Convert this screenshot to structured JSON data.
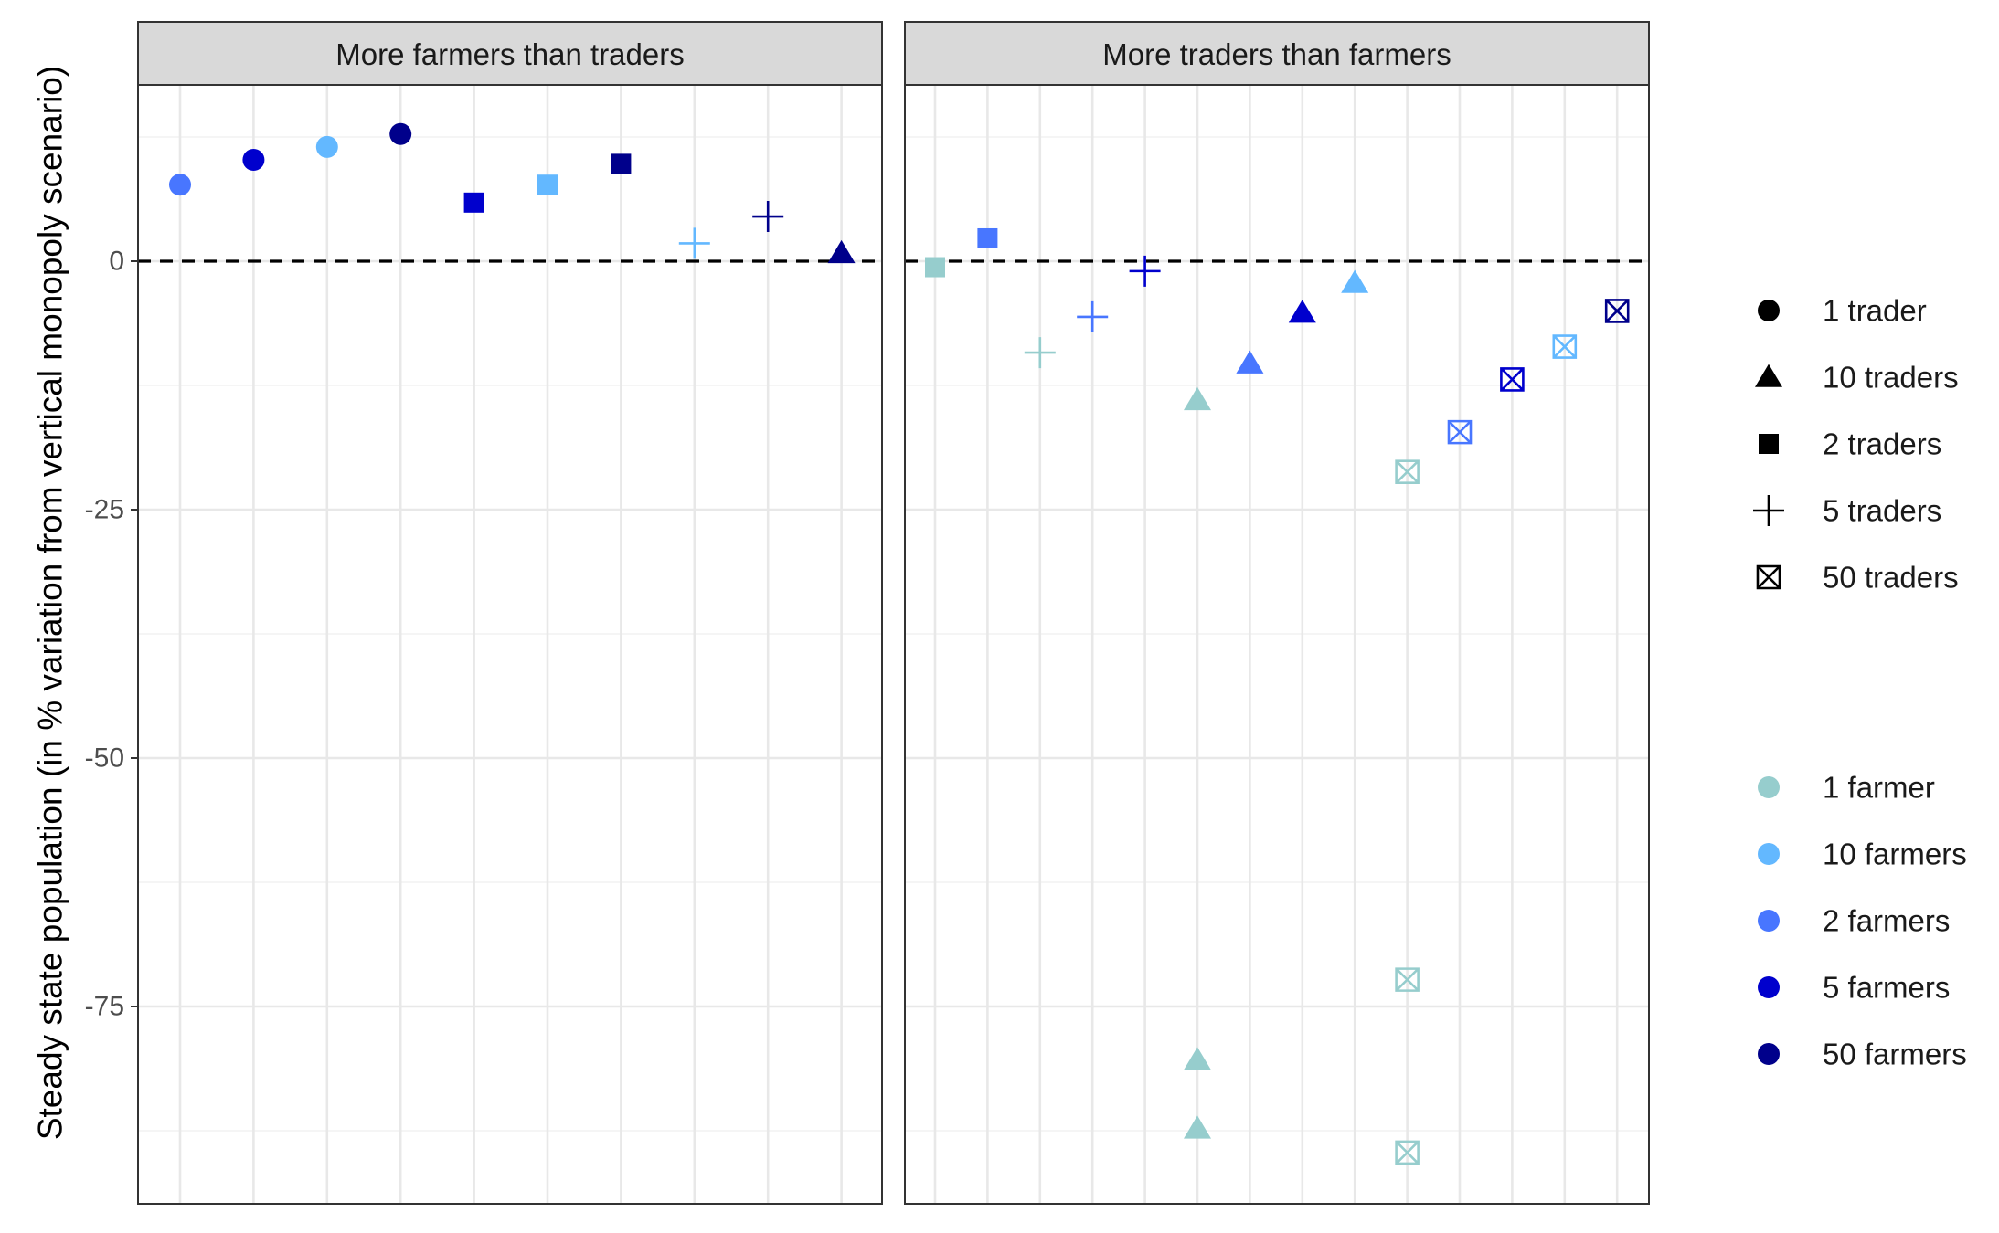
{
  "chart_data": {
    "type": "scatter",
    "ylabel": "Steady state population (in % variation from vertical monopoly scenario)",
    "ylim": [
      -95,
      18
    ],
    "yticks": [
      0,
      -25,
      -50,
      -75
    ],
    "ytick_labels": [
      "0",
      "-25",
      "-50",
      "-75"
    ],
    "reference_line": 0,
    "grid": true,
    "legend_position": "right",
    "shape_legend": [
      {
        "label": "1 trader",
        "shape": "circle"
      },
      {
        "label": "10 traders",
        "shape": "triangle"
      },
      {
        "label": "2 traders",
        "shape": "square"
      },
      {
        "label": "5 traders",
        "shape": "plus"
      },
      {
        "label": "50 traders",
        "shape": "boxx"
      }
    ],
    "color_legend": [
      {
        "label": "1 farmer",
        "color": "#96CDCD"
      },
      {
        "label": "10 farmers",
        "color": "#63B8FF"
      },
      {
        "label": "2 farmers",
        "color": "#4876FF"
      },
      {
        "label": "5 farmers",
        "color": "#0000CD"
      },
      {
        "label": "50 farmers",
        "color": "#00008B"
      }
    ],
    "panels": [
      {
        "title": "More farmers than traders",
        "n_positions": 10,
        "points": [
          {
            "x": 1,
            "y": 7.7,
            "shape": "circle",
            "color": "#4876FF"
          },
          {
            "x": 2,
            "y": 10.2,
            "shape": "circle",
            "color": "#0000CD"
          },
          {
            "x": 3,
            "y": 11.5,
            "shape": "circle",
            "color": "#63B8FF"
          },
          {
            "x": 4,
            "y": 12.8,
            "shape": "circle",
            "color": "#00008B"
          },
          {
            "x": 5,
            "y": 5.9,
            "shape": "square",
            "color": "#0000CD"
          },
          {
            "x": 6,
            "y": 7.7,
            "shape": "square",
            "color": "#63B8FF"
          },
          {
            "x": 7,
            "y": 9.8,
            "shape": "square",
            "color": "#00008B"
          },
          {
            "x": 8,
            "y": 1.8,
            "shape": "plus",
            "color": "#63B8FF"
          },
          {
            "x": 9,
            "y": 4.5,
            "shape": "plus",
            "color": "#00008B"
          },
          {
            "x": 10,
            "y": 0.8,
            "shape": "triangle",
            "color": "#00008B"
          }
        ]
      },
      {
        "title": "More traders than farmers",
        "n_positions": 14,
        "points": [
          {
            "x": 1,
            "y": -0.6,
            "shape": "square",
            "color": "#96CDCD"
          },
          {
            "x": 2,
            "y": 2.3,
            "shape": "square",
            "color": "#4876FF"
          },
          {
            "x": 3,
            "y": -9.2,
            "shape": "plus",
            "color": "#96CDCD"
          },
          {
            "x": 4,
            "y": -5.6,
            "shape": "plus",
            "color": "#4876FF"
          },
          {
            "x": 5,
            "y": -1.0,
            "shape": "plus",
            "color": "#0000CD"
          },
          {
            "x": 6,
            "y": -14.0,
            "shape": "triangle",
            "color": "#96CDCD"
          },
          {
            "x": 6,
            "y": -80.4,
            "shape": "triangle",
            "color": "#96CDCD"
          },
          {
            "x": 6,
            "y": -87.3,
            "shape": "triangle",
            "color": "#96CDCD"
          },
          {
            "x": 7,
            "y": -10.3,
            "shape": "triangle",
            "color": "#4876FF"
          },
          {
            "x": 8,
            "y": -5.2,
            "shape": "triangle",
            "color": "#0000CD"
          },
          {
            "x": 9,
            "y": -2.2,
            "shape": "triangle",
            "color": "#63B8FF"
          },
          {
            "x": 10,
            "y": -21.2,
            "shape": "boxx",
            "color": "#96CDCD"
          },
          {
            "x": 10,
            "y": -72.3,
            "shape": "boxx",
            "color": "#96CDCD"
          },
          {
            "x": 10,
            "y": -89.7,
            "shape": "boxx",
            "color": "#96CDCD"
          },
          {
            "x": 11,
            "y": -17.2,
            "shape": "boxx",
            "color": "#4876FF"
          },
          {
            "x": 12,
            "y": -11.9,
            "shape": "boxx",
            "color": "#0000CD"
          },
          {
            "x": 13,
            "y": -8.6,
            "shape": "boxx",
            "color": "#63B8FF"
          },
          {
            "x": 14,
            "y": -5.0,
            "shape": "boxx",
            "color": "#00008B"
          }
        ]
      }
    ]
  }
}
